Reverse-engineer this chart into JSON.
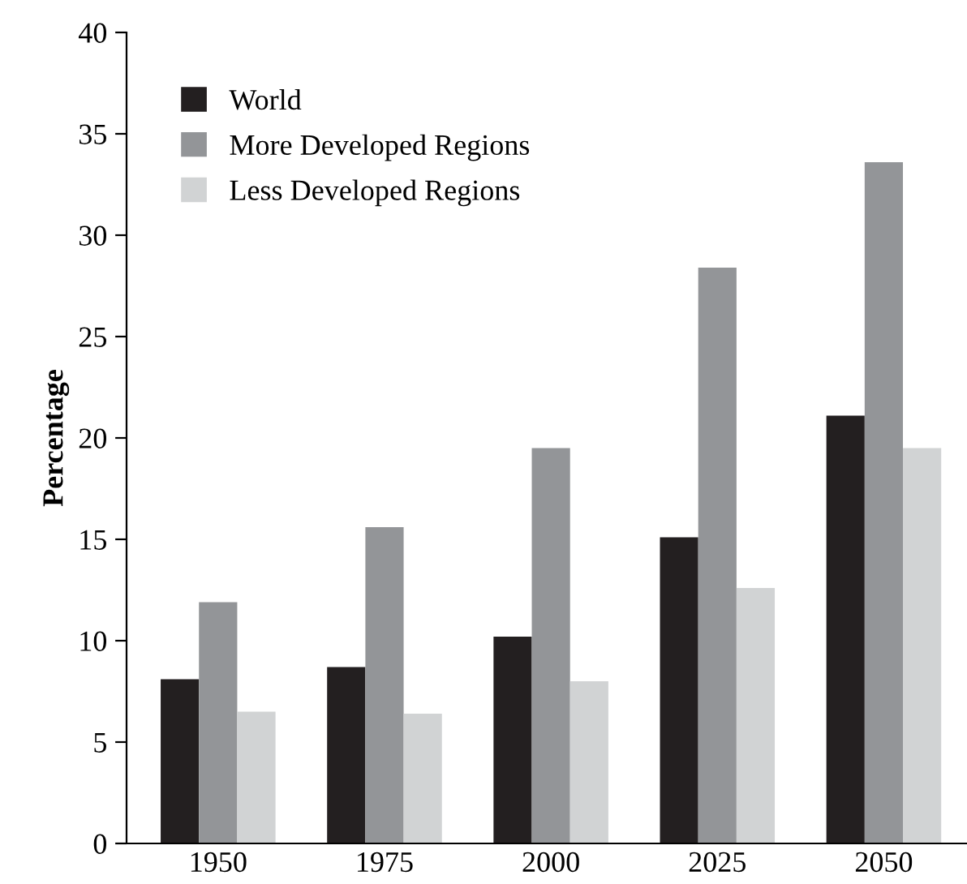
{
  "chart_data": {
    "type": "bar",
    "ylabel": "Percentage",
    "categories": [
      "1950",
      "1975",
      "2000",
      "2025",
      "2050"
    ],
    "series": [
      {
        "name": "World",
        "color": "#231f20",
        "values": [
          8.1,
          8.7,
          10.2,
          15.1,
          21.1
        ]
      },
      {
        "name": "More Developed Regions",
        "color": "#939598",
        "values": [
          11.9,
          15.6,
          19.5,
          28.4,
          33.6
        ]
      },
      {
        "name": "Less Developed Regions",
        "color": "#d1d3d4",
        "values": [
          6.5,
          6.4,
          8.0,
          12.6,
          19.5
        ]
      }
    ],
    "ylim": [
      0,
      40
    ],
    "yticks": [
      0,
      5,
      10,
      15,
      20,
      25,
      30,
      35,
      40
    ],
    "grid": false,
    "legend": "top left"
  }
}
